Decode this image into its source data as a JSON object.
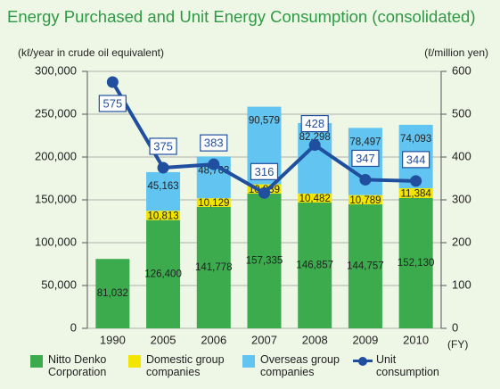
{
  "chart_data": {
    "type": "bar_line",
    "title": "Energy Purchased and Unit Energy Consumption (consolidated)",
    "y_label": "(kℓ/year in crude oil equivalent)",
    "y2_label": "(ℓ/million yen)",
    "x_label": "(FY)",
    "categories": [
      "1990",
      "2005",
      "2006",
      "2007",
      "2008",
      "2009",
      "2010"
    ],
    "ylim": [
      0,
      300000
    ],
    "yticks": [
      0,
      {
        "value": 50000,
        "label": "50,000"
      },
      {
        "value": 100000,
        "label": "100,000"
      },
      {
        "value": 150000,
        "label": "150,000"
      },
      {
        "value": 200000,
        "label": "200,000"
      },
      {
        "value": 250000,
        "label": "250,000"
      },
      {
        "value": 300000,
        "label": "300,000"
      }
    ],
    "y2lim": [
      0,
      600
    ],
    "y2ticks": [
      0,
      100,
      200,
      300,
      400,
      500,
      600
    ],
    "grid": true,
    "series": [
      {
        "name": "Nitto Denko Corporation",
        "color": "#3cab4e",
        "values": [
          81032,
          126400,
          141778,
          157335,
          146857,
          144757,
          152130
        ],
        "value_labels": [
          "81,032",
          "126,400",
          "141,778",
          "157,335",
          "146,857",
          "144,757",
          "152,130"
        ]
      },
      {
        "name": "Domestic group companies",
        "color": "#f2e600",
        "values": [
          null,
          10813,
          10129,
          10839,
          10482,
          10789,
          11384
        ],
        "value_labels": [
          null,
          "10,813",
          "10,129",
          "10,839",
          "10,482",
          "10,789",
          "11,384"
        ]
      },
      {
        "name": "Overseas group companies",
        "color": "#62c4f0",
        "values": [
          null,
          45163,
          48763,
          90579,
          82298,
          78497,
          74093
        ],
        "value_labels": [
          null,
          "45,163",
          "48,763",
          "90,579",
          "82,298",
          "78,497",
          "74,093"
        ]
      },
      {
        "name": "Unit consumption",
        "color": "#1f4f9e",
        "axis": "y2",
        "type": "line",
        "values": [
          575,
          375,
          383,
          316,
          428,
          347,
          344
        ]
      }
    ]
  }
}
